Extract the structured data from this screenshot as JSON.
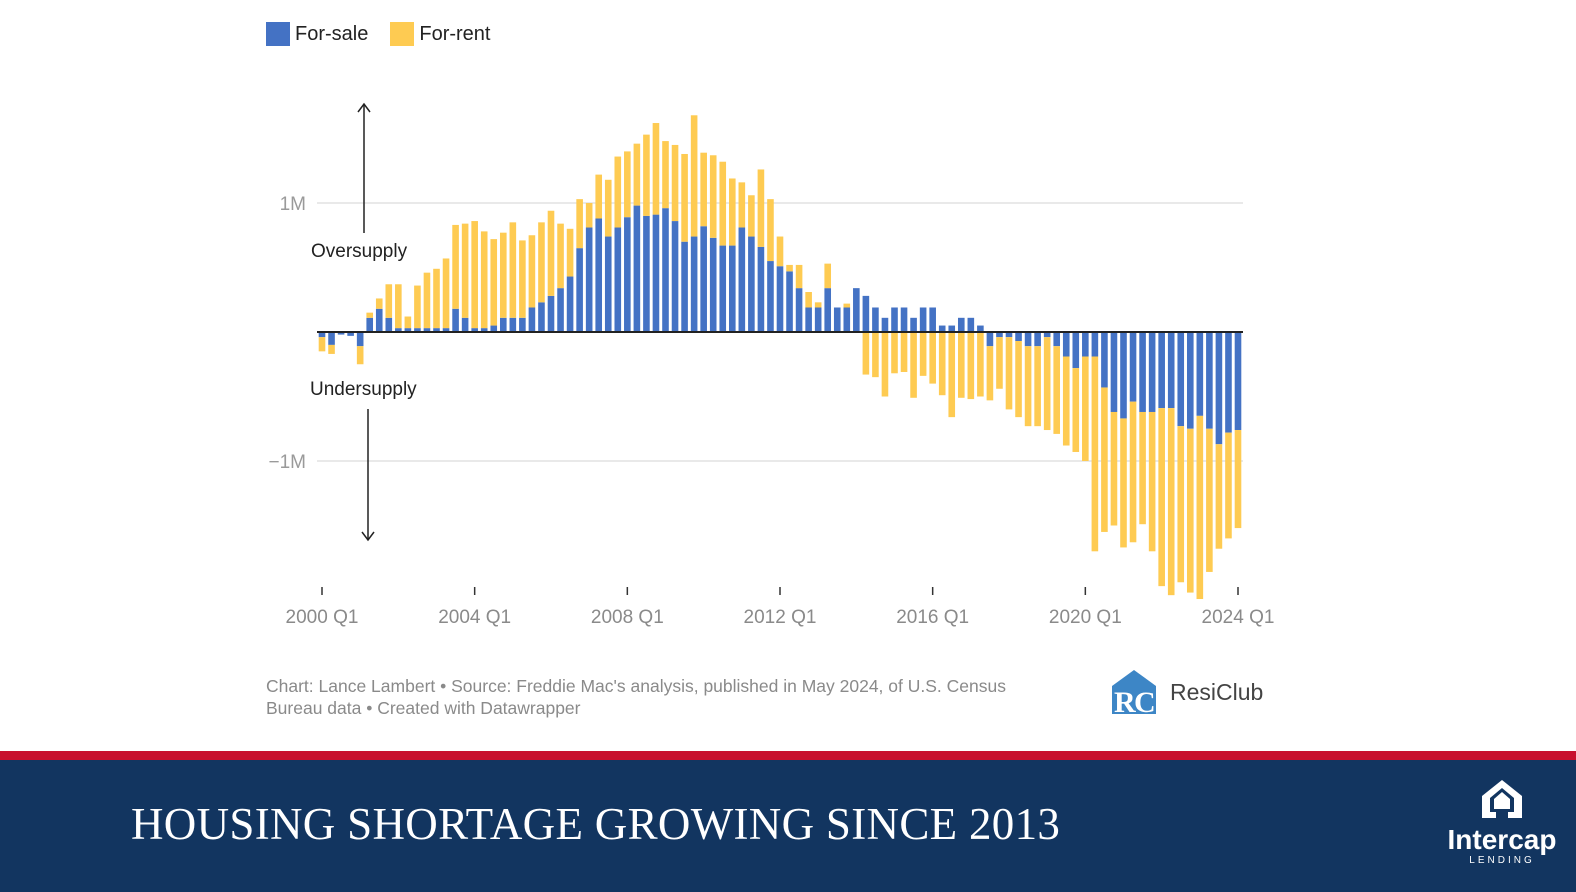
{
  "legend": {
    "items": [
      {
        "label": "For-sale",
        "color": "#4472c4"
      },
      {
        "label": "For-rent",
        "color": "#fecb52"
      }
    ]
  },
  "annotations": {
    "oversupply": "Oversupply",
    "undersupply": "Undersupply"
  },
  "source_note": "Chart: Lance Lambert • Source: Freddie Mac's analysis, published in May 2024, of U.S. Census Bureau data • Created with Datawrapper",
  "resiclub": {
    "logo_text": "ResiClub"
  },
  "footer": {
    "title": "HOUSING SHORTAGE GROWING SINCE 2013",
    "brand_name": "Intercap",
    "brand_sub": "LENDING"
  },
  "chart_data": {
    "type": "bar",
    "stacked": true,
    "title": "",
    "xlabel": "",
    "ylabel": "",
    "ylim": [
      -2000000,
      1950000
    ],
    "yticks": [
      {
        "value": 1000000,
        "label": "1M"
      },
      {
        "value": -1000000,
        "label": "−1M"
      }
    ],
    "xticks": [
      {
        "index": 0,
        "label": "2000 Q1"
      },
      {
        "index": 16,
        "label": "2004 Q1"
      },
      {
        "index": 32,
        "label": "2008 Q1"
      },
      {
        "index": 48,
        "label": "2012 Q1"
      },
      {
        "index": 64,
        "label": "2016 Q1"
      },
      {
        "index": 80,
        "label": "2020 Q1"
      },
      {
        "index": 96,
        "label": "2024 Q1"
      }
    ],
    "categories": [
      "2000 Q1",
      "2000 Q2",
      "2000 Q3",
      "2000 Q4",
      "2001 Q1",
      "2001 Q2",
      "2001 Q3",
      "2001 Q4",
      "2002 Q1",
      "2002 Q2",
      "2002 Q3",
      "2002 Q4",
      "2003 Q1",
      "2003 Q2",
      "2003 Q3",
      "2003 Q4",
      "2004 Q1",
      "2004 Q2",
      "2004 Q3",
      "2004 Q4",
      "2005 Q1",
      "2005 Q2",
      "2005 Q3",
      "2005 Q4",
      "2006 Q1",
      "2006 Q2",
      "2006 Q3",
      "2006 Q4",
      "2007 Q1",
      "2007 Q2",
      "2007 Q3",
      "2007 Q4",
      "2008 Q1",
      "2008 Q2",
      "2008 Q3",
      "2008 Q4",
      "2009 Q1",
      "2009 Q2",
      "2009 Q3",
      "2009 Q4",
      "2010 Q1",
      "2010 Q2",
      "2010 Q3",
      "2010 Q4",
      "2011 Q1",
      "2011 Q2",
      "2011 Q3",
      "2011 Q4",
      "2012 Q1",
      "2012 Q2",
      "2012 Q3",
      "2012 Q4",
      "2013 Q1",
      "2013 Q2",
      "2013 Q3",
      "2013 Q4",
      "2014 Q1",
      "2014 Q2",
      "2014 Q3",
      "2014 Q4",
      "2015 Q1",
      "2015 Q2",
      "2015 Q3",
      "2015 Q4",
      "2016 Q1",
      "2016 Q2",
      "2016 Q3",
      "2016 Q4",
      "2017 Q1",
      "2017 Q2",
      "2017 Q3",
      "2017 Q4",
      "2018 Q1",
      "2018 Q2",
      "2018 Q3",
      "2018 Q4",
      "2019 Q1",
      "2019 Q2",
      "2019 Q3",
      "2019 Q4",
      "2020 Q1",
      "2020 Q2",
      "2020 Q3",
      "2020 Q4",
      "2021 Q1",
      "2021 Q2",
      "2021 Q3",
      "2021 Q4",
      "2022 Q1",
      "2022 Q2",
      "2022 Q3",
      "2022 Q4",
      "2023 Q1",
      "2023 Q2",
      "2023 Q3",
      "2023 Q4",
      "2024 Q1"
    ],
    "series": [
      {
        "name": "For-sale",
        "color": "#4472c4",
        "values": [
          -40000,
          -100000,
          -20000,
          -30000,
          -110000,
          110000,
          180000,
          110000,
          30000,
          30000,
          30000,
          30000,
          30000,
          30000,
          180000,
          110000,
          30000,
          30000,
          50000,
          110000,
          110000,
          110000,
          190000,
          230000,
          280000,
          340000,
          430000,
          650000,
          810000,
          880000,
          740000,
          810000,
          890000,
          980000,
          900000,
          910000,
          960000,
          860000,
          700000,
          740000,
          820000,
          730000,
          670000,
          670000,
          810000,
          740000,
          660000,
          550000,
          510000,
          470000,
          340000,
          190000,
          190000,
          340000,
          190000,
          190000,
          340000,
          280000,
          190000,
          110000,
          190000,
          190000,
          110000,
          190000,
          190000,
          50000,
          50000,
          110000,
          110000,
          50000,
          -110000,
          -40000,
          -40000,
          -70000,
          -110000,
          -110000,
          -40000,
          -110000,
          -190000,
          -280000,
          -190000,
          -190000,
          -430000,
          -620000,
          -670000,
          -540000,
          -620000,
          -620000,
          -590000,
          -590000,
          -730000,
          -750000,
          -650000,
          -750000,
          -870000,
          -780000,
          -760000
        ]
      },
      {
        "name": "For-rent",
        "color": "#fecb52",
        "values": [
          -110000,
          -70000,
          0,
          0,
          -140000,
          40000,
          80000,
          260000,
          340000,
          90000,
          330000,
          430000,
          460000,
          540000,
          650000,
          730000,
          830000,
          750000,
          670000,
          660000,
          740000,
          600000,
          560000,
          620000,
          660000,
          500000,
          370000,
          380000,
          190000,
          340000,
          440000,
          550000,
          510000,
          480000,
          630000,
          710000,
          520000,
          590000,
          680000,
          940000,
          570000,
          640000,
          650000,
          520000,
          350000,
          320000,
          600000,
          480000,
          230000,
          50000,
          180000,
          120000,
          40000,
          190000,
          0,
          30000,
          0,
          -330000,
          -350000,
          -500000,
          -320000,
          -310000,
          -510000,
          -340000,
          -400000,
          -490000,
          -660000,
          -510000,
          -520000,
          -500000,
          -420000,
          -400000,
          -560000,
          -590000,
          -620000,
          -620000,
          -720000,
          -680000,
          -690000,
          -650000,
          -810000,
          -1510000,
          -1120000,
          -880000,
          -1000000,
          -1090000,
          -870000,
          -1080000,
          -1380000,
          -1450000,
          -1210000,
          -1270000,
          -1420000,
          -1110000,
          -810000,
          -820000,
          -760000
        ]
      }
    ],
    "grid": true,
    "legend_position": "top-left"
  }
}
